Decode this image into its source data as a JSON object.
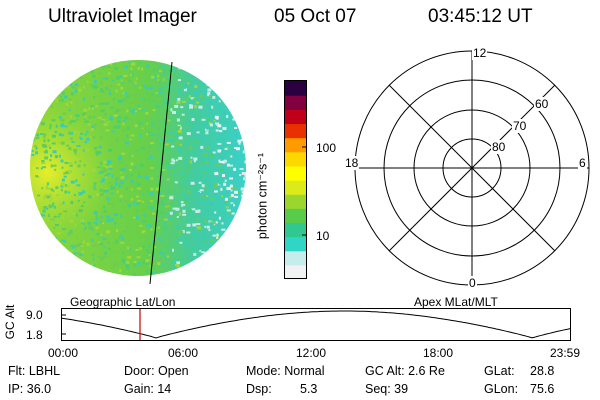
{
  "header": {
    "title": "Ultraviolet Imager",
    "date": "05 Oct 07",
    "time": "03:45:12 UT"
  },
  "colorbar": {
    "unit_label": "photon cm⁻²s⁻¹",
    "ticks": [
      "100",
      "10"
    ],
    "scale": "log",
    "colors": [
      "#f2f2f2",
      "#c6ecec",
      "#2fd6c6",
      "#30c890",
      "#56cc4a",
      "#9ad62e",
      "#dcea1a",
      "#ffff00",
      "#ffd700",
      "#ff9a00",
      "#e83000",
      "#c00018",
      "#800040",
      "#2a0040"
    ]
  },
  "polar_plot": {
    "mlt_labels": {
      "top": "12",
      "bottom": "0",
      "left": "18",
      "right": "6"
    },
    "lat_labels": [
      "60",
      "70",
      "80"
    ]
  },
  "map_labels": {
    "left": "Geographic Lat/Lon",
    "right": "Apex MLat/MLT"
  },
  "altitude_plot": {
    "ylabel": "GC Alt",
    "yticks": [
      "9.0",
      "1.8"
    ],
    "xticks": [
      "00:00",
      "06:00",
      "12:00",
      "18:00",
      "23:59"
    ],
    "marker_color": "#cc0000"
  },
  "status": {
    "filter": "Flt: LBHL",
    "ip": "IP: 36.0",
    "door": "Door: Open",
    "gain": "Gain: 14",
    "mode": "Mode: Normal",
    "dsp_label": "Dsp:",
    "dsp_value": "5.3",
    "gc_alt": "GC Alt: 2.6 Re",
    "seq": "Seq: 39",
    "glat_label": "GLat:",
    "glat_value": "28.8",
    "glon_label": "GLon:",
    "glon_value": "75.6"
  }
}
